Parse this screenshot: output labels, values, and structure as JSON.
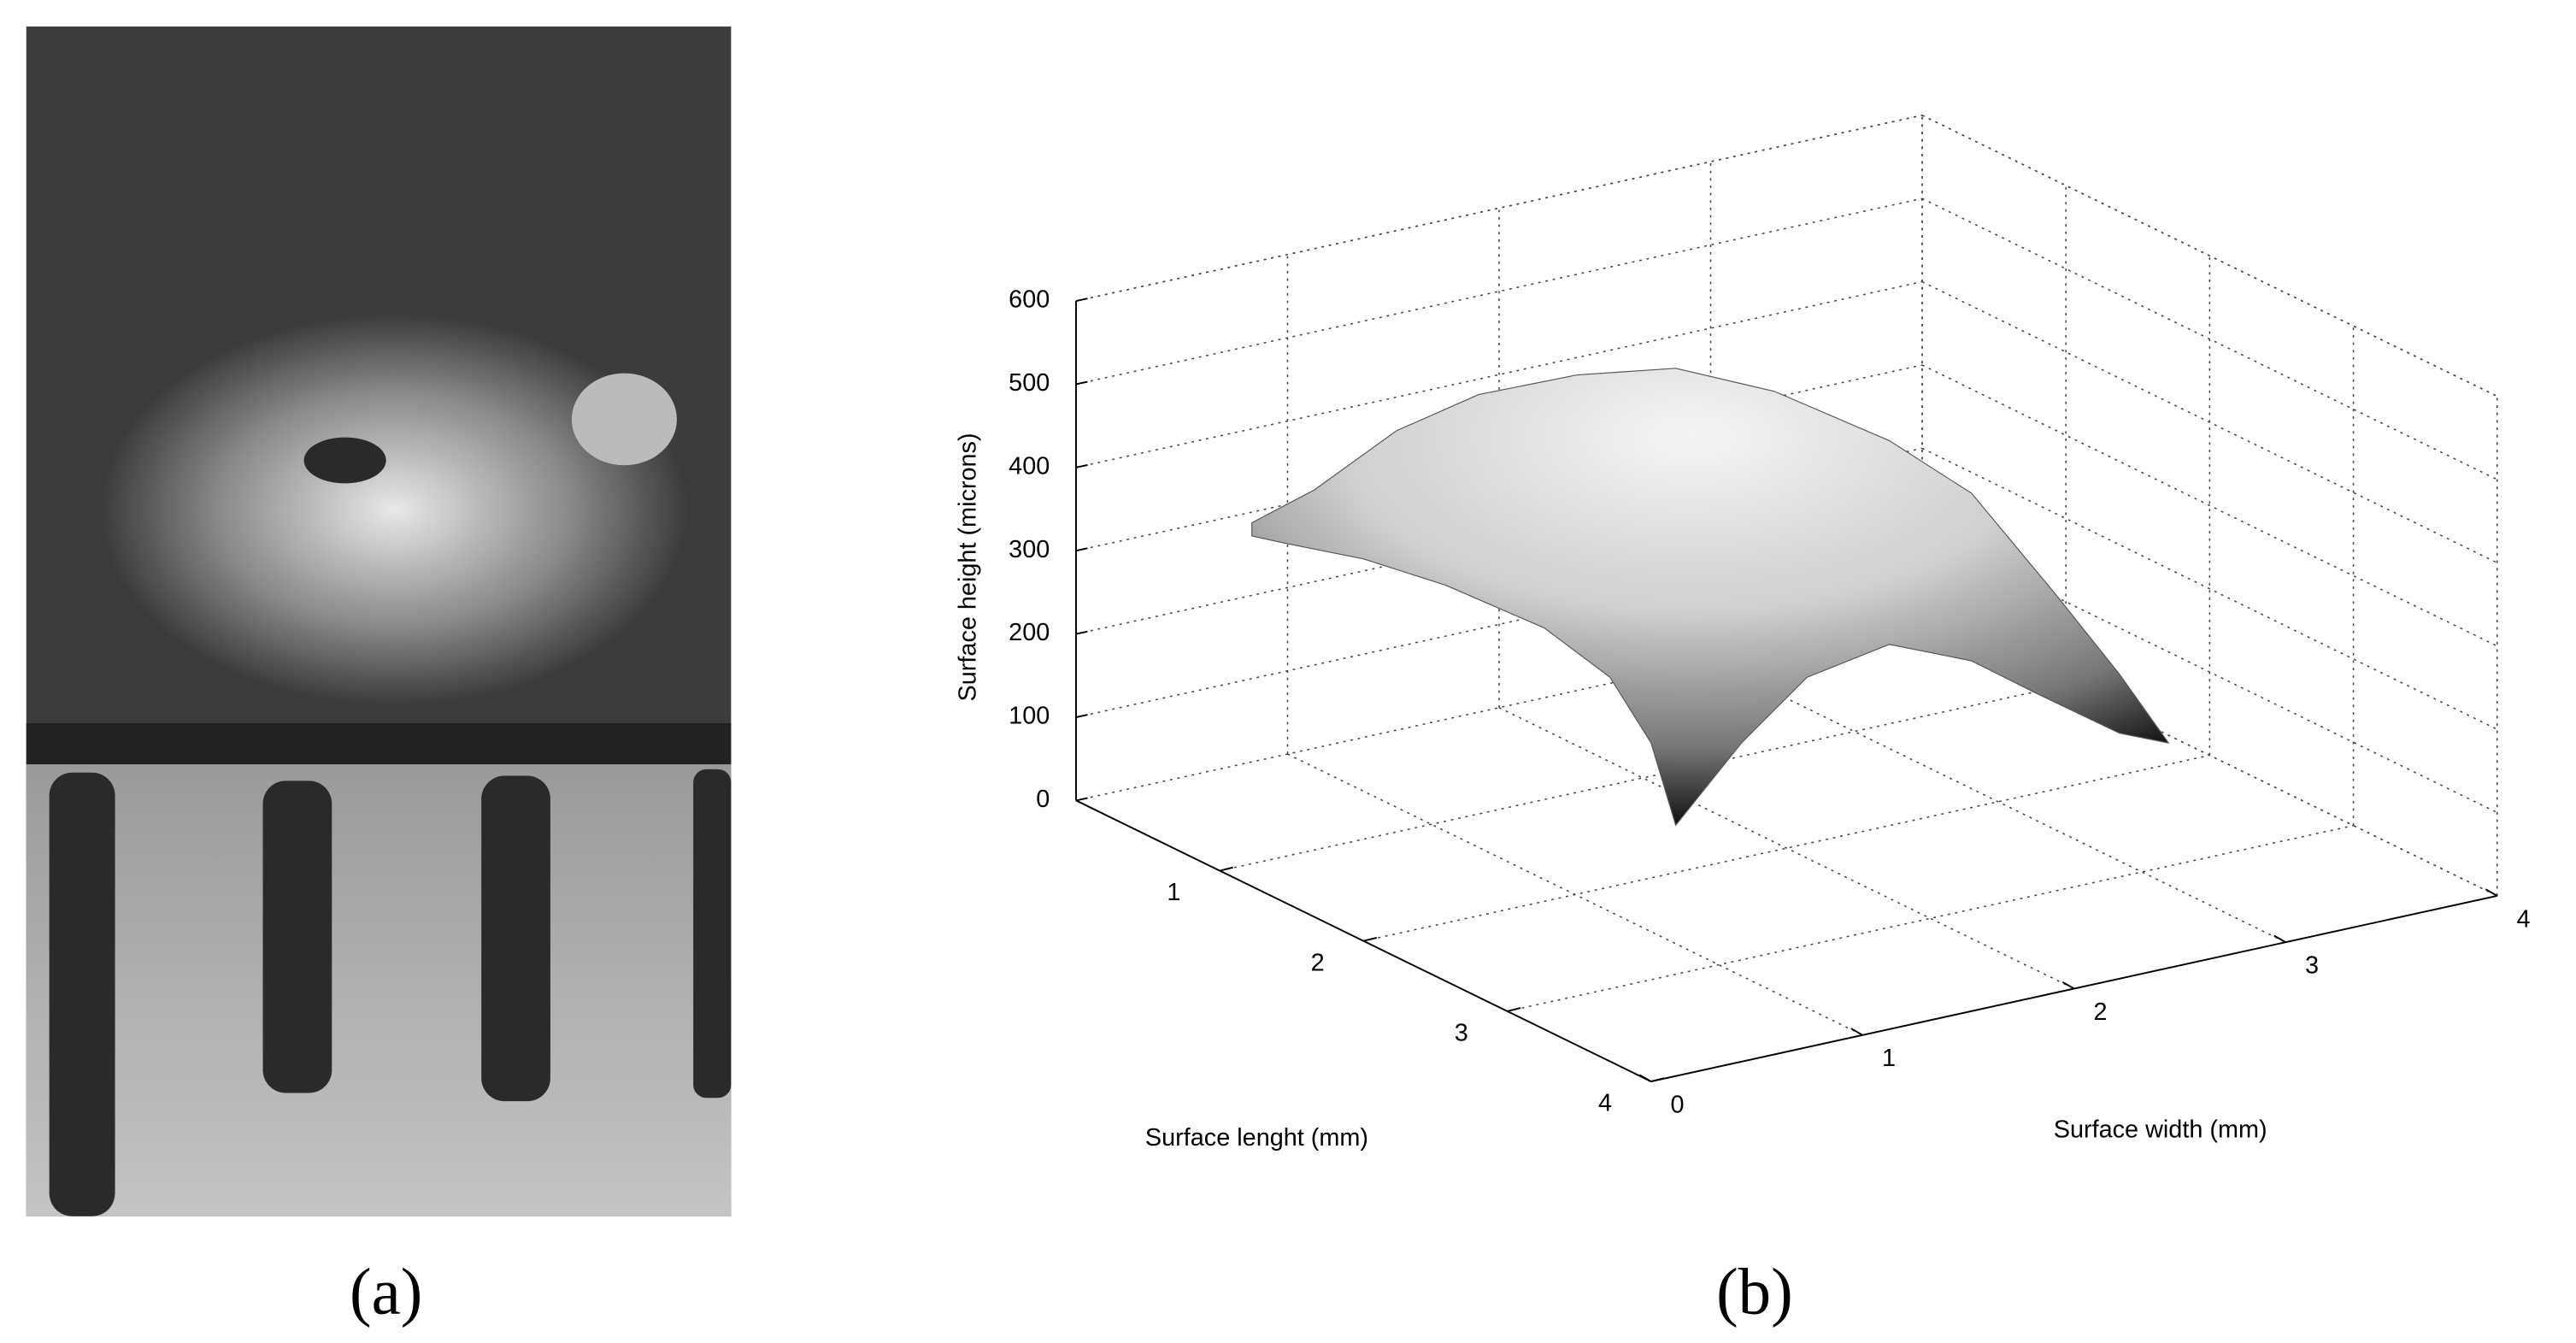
{
  "panels": [
    {
      "label": "(a)"
    },
    {
      "label": "(b)",
      "chart_data": {
        "type": "surface3d",
        "zlabel": "Surface height (microns)",
        "xlabel": "Surface lenght (mm)",
        "ylabel": "Surface width (mm)",
        "zlim": [
          0,
          600
        ],
        "zticks": [
          0,
          100,
          200,
          300,
          400,
          500,
          600
        ],
        "xlim": [
          0,
          4
        ],
        "xticks": [
          1,
          2,
          3,
          4
        ],
        "ylim": [
          0,
          4
        ],
        "yticks": [
          0,
          1,
          2,
          3,
          4
        ],
        "grid": true
      }
    }
  ]
}
